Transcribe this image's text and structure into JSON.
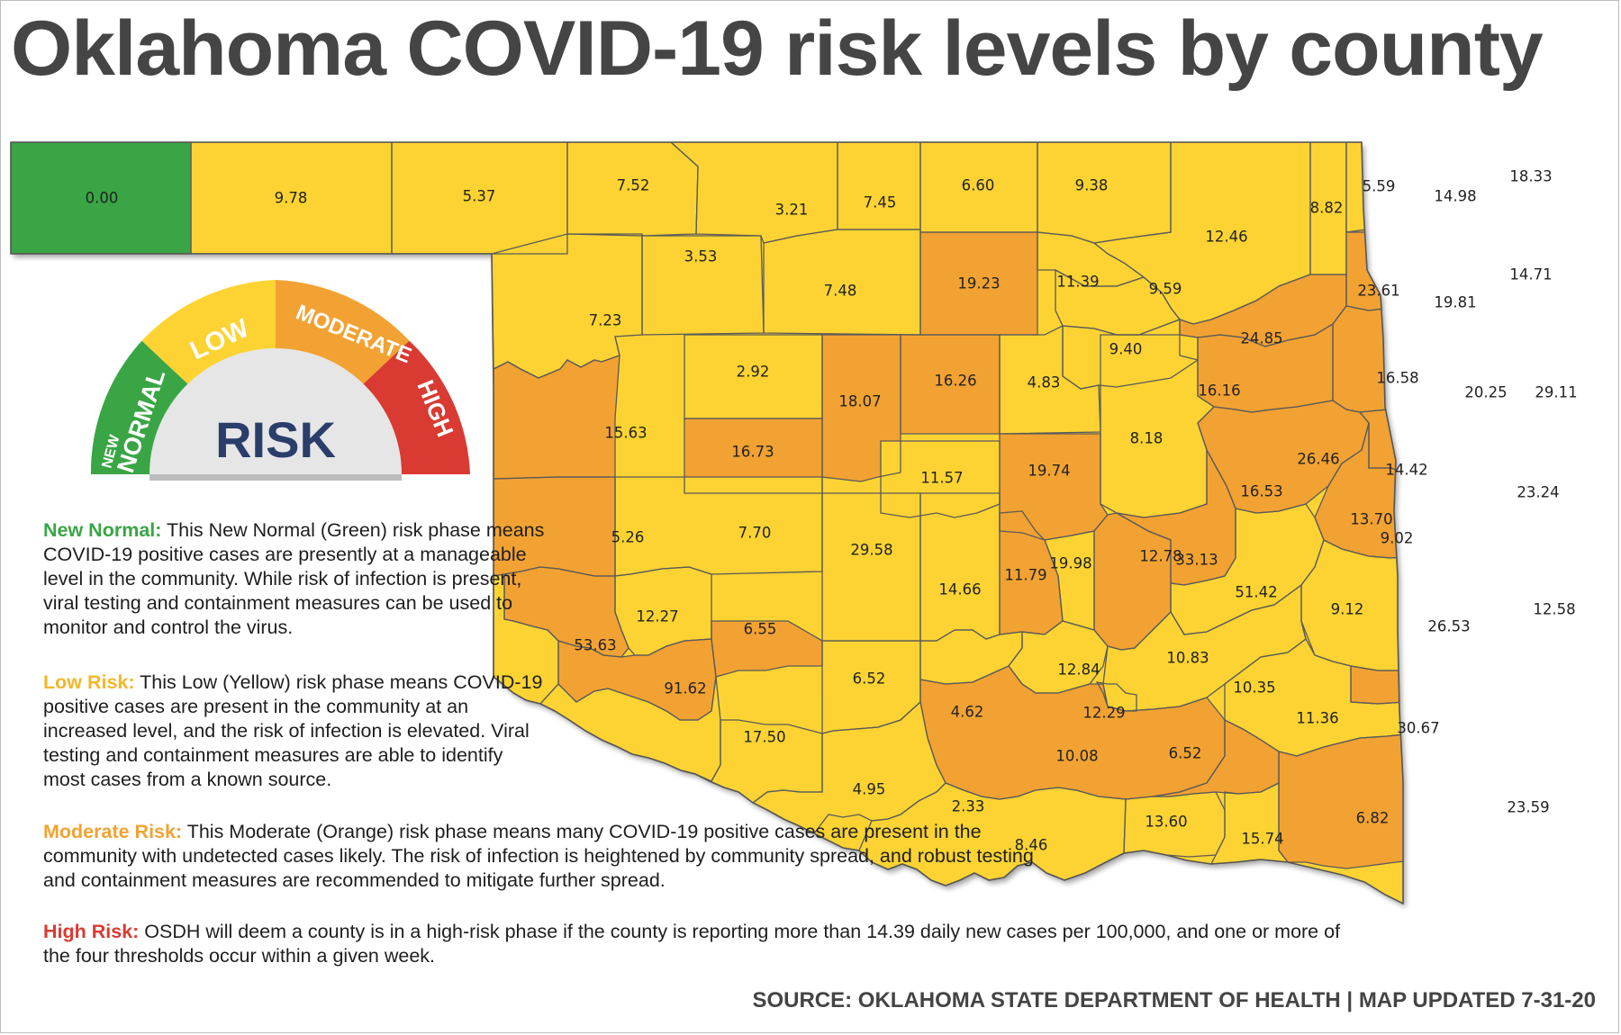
{
  "title": "Oklahoma COVID-19 risk levels by county",
  "colors": {
    "new_normal": "#3aa545",
    "low": "#fcd332",
    "moderate": "#f2a232",
    "high": "#d93a32",
    "county_border": "#5a5a5a"
  },
  "gauge": {
    "labels": {
      "new_normal_top": "NEW",
      "new_normal": "NORMAL",
      "low": "LOW",
      "moderate": "MODERATE",
      "high": "HIGH"
    },
    "center_label": "RISK"
  },
  "legend": [
    {
      "term": "New Normal:",
      "color": "#3aa545",
      "text": " This New Normal (Green) risk phase means COVID-19 positive cases are presently at a manageable level in the community. While risk of infection is present, viral testing and containment measures can be used to monitor and control the virus."
    },
    {
      "term": "Low Risk:",
      "color": "#fcd332",
      "text": " This Low (Yellow) risk phase means COVID-19 positive cases are present in the community at an increased level, and the risk of infection is elevated. Viral testing and containment measures are able to identify most cases from a known source."
    },
    {
      "term": "Moderate Risk:",
      "color": "#f2a232",
      "text": " This Moderate (Orange) risk phase means many COVID-19 positive cases are present in the community with undetected cases likely. The risk of infection is heightened by community spread, and robust testing and containment measures are recommended to mitigate further spread."
    },
    {
      "term": "High Risk:",
      "color": "#d93a32",
      "text": " OSDH will deem a county is in a high-risk phase if the county is reporting more than 14.39 daily new cases per 100,000, and one or more of the four thresholds occur within a given week."
    }
  ],
  "source": "SOURCE: OKLAHOMA STATE DEPARTMENT OF HEALTH | MAP UPDATED 7-31-20",
  "counties": [
    {
      "value": "0.00",
      "level": "new_normal"
    },
    {
      "value": "9.78",
      "level": "low"
    },
    {
      "value": "5.37",
      "level": "low"
    },
    {
      "value": "7.52",
      "level": "low"
    },
    {
      "value": "3.21",
      "level": "low"
    },
    {
      "value": "7.45",
      "level": "low"
    },
    {
      "value": "6.60",
      "level": "low"
    },
    {
      "value": "9.38",
      "level": "low"
    },
    {
      "value": "12.46",
      "level": "low"
    },
    {
      "value": "8.82",
      "level": "low"
    },
    {
      "value": "5.59",
      "level": "low"
    },
    {
      "value": "14.98",
      "level": "moderate"
    },
    {
      "value": "18.33",
      "level": "moderate"
    },
    {
      "value": "3.53",
      "level": "low"
    },
    {
      "value": "7.48",
      "level": "low"
    },
    {
      "value": "19.23",
      "level": "moderate"
    },
    {
      "value": "11.39",
      "level": "low"
    },
    {
      "value": "9.59",
      "level": "low"
    },
    {
      "value": "23.61",
      "level": "moderate"
    },
    {
      "value": "19.81",
      "level": "moderate"
    },
    {
      "value": "14.71",
      "level": "moderate"
    },
    {
      "value": "7.23",
      "level": "low"
    },
    {
      "value": "24.85",
      "level": "moderate"
    },
    {
      "value": "9.40",
      "level": "low"
    },
    {
      "value": "2.92",
      "level": "low"
    },
    {
      "value": "18.07",
      "level": "moderate"
    },
    {
      "value": "16.26",
      "level": "moderate"
    },
    {
      "value": "4.83",
      "level": "low"
    },
    {
      "value": "16.16",
      "level": "moderate"
    },
    {
      "value": "16.58",
      "level": "moderate"
    },
    {
      "value": "20.25",
      "level": "moderate"
    },
    {
      "value": "29.11",
      "level": "moderate"
    },
    {
      "value": "15.63",
      "level": "moderate"
    },
    {
      "value": "16.73",
      "level": "moderate"
    },
    {
      "value": "8.18",
      "level": "low"
    },
    {
      "value": "11.57",
      "level": "low"
    },
    {
      "value": "19.74",
      "level": "moderate"
    },
    {
      "value": "26.46",
      "level": "moderate"
    },
    {
      "value": "14.42",
      "level": "moderate"
    },
    {
      "value": "23.24",
      "level": "moderate"
    },
    {
      "value": "16.53",
      "level": "moderate"
    },
    {
      "value": "5.26",
      "level": "low"
    },
    {
      "value": "7.70",
      "level": "low"
    },
    {
      "value": "29.58",
      "level": "moderate"
    },
    {
      "value": "13.70",
      "level": "low"
    },
    {
      "value": "9.02",
      "level": "low"
    },
    {
      "value": "14.66",
      "level": "moderate"
    },
    {
      "value": "11.79",
      "level": "low"
    },
    {
      "value": "19.98",
      "level": "moderate"
    },
    {
      "value": "12.78",
      "level": "low"
    },
    {
      "value": "33.13",
      "level": "moderate"
    },
    {
      "value": "51.42",
      "level": "moderate"
    },
    {
      "value": "12.27",
      "level": "low"
    },
    {
      "value": "6.55",
      "level": "low"
    },
    {
      "value": "9.12",
      "level": "low"
    },
    {
      "value": "12.58",
      "level": "low"
    },
    {
      "value": "53.63",
      "level": "moderate"
    },
    {
      "value": "26.53",
      "level": "moderate"
    },
    {
      "value": "91.62",
      "level": "moderate"
    },
    {
      "value": "6.52",
      "level": "low"
    },
    {
      "value": "12.84",
      "level": "low"
    },
    {
      "value": "10.83",
      "level": "low"
    },
    {
      "value": "10.35",
      "level": "low"
    },
    {
      "value": "12.29",
      "level": "low"
    },
    {
      "value": "4.62",
      "level": "low"
    },
    {
      "value": "11.36",
      "level": "low"
    },
    {
      "value": "17.50",
      "level": "moderate"
    },
    {
      "value": "30.67",
      "level": "moderate"
    },
    {
      "value": "10.08",
      "level": "low"
    },
    {
      "value": "6.52",
      "level": "low"
    },
    {
      "value": "4.95",
      "level": "low"
    },
    {
      "value": "2.33",
      "level": "low"
    },
    {
      "value": "23.59",
      "level": "moderate"
    },
    {
      "value": "13.60",
      "level": "low"
    },
    {
      "value": "6.82",
      "level": "low"
    },
    {
      "value": "15.74",
      "level": "moderate"
    },
    {
      "value": "8.46",
      "level": "low"
    }
  ]
}
